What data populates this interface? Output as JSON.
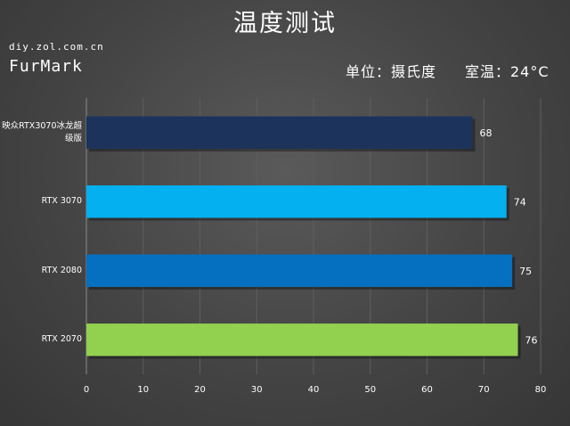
{
  "header": {
    "title": "温度测试",
    "watermark": "diy.zol.com.cn",
    "tool": "FurMark",
    "unit": "单位：摄氏度",
    "room_temp": "室温：24°C"
  },
  "chart_data": {
    "type": "bar",
    "orientation": "horizontal",
    "title": "温度测试",
    "categories": [
      "映众RTX3070冰龙超级版",
      "RTX 3070",
      "RTX 2080",
      "RTX 2070"
    ],
    "values": [
      68,
      74,
      75,
      76
    ],
    "colors": [
      "#1c345c",
      "#04b0f0",
      "#0670c0",
      "#92d050"
    ],
    "xlim": [
      0,
      80
    ],
    "xticks": [
      0,
      10,
      20,
      30,
      40,
      50,
      60,
      70,
      80
    ],
    "grid": true,
    "legend": "none"
  }
}
